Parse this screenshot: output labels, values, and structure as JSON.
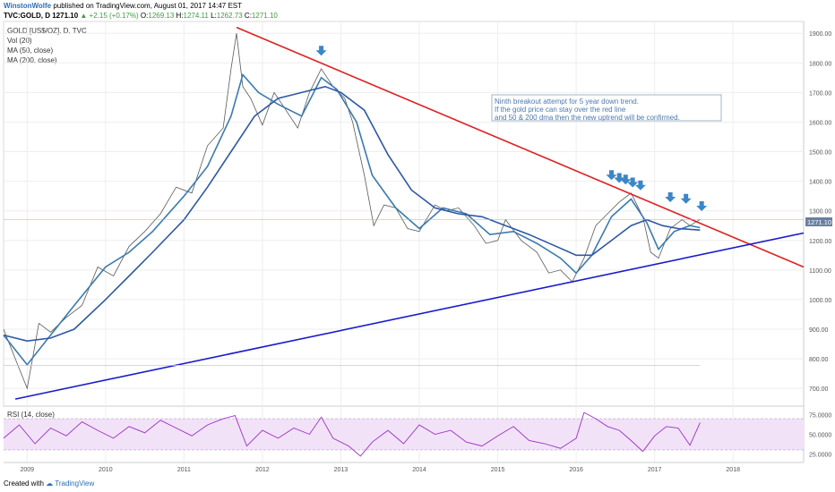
{
  "header": {
    "author": "WinstonWolfe",
    "published": "published on TradingView.com, August 01, 2017 14:47 EST",
    "symbol": "TVC:GOLD, D",
    "last": "1271.10",
    "change": "▲ +2.15 (+0.17%)",
    "o_label": "O:",
    "o": "1269.13",
    "h_label": "H:",
    "h": "1274.11",
    "l_label": "L:",
    "l": "1262.73",
    "c_label": "C:",
    "c": "1271.10"
  },
  "legend": [
    "GOLD [US$/OZ], D, TVC",
    "Vol (20)",
    "MA (50, close)",
    "MA (200, close)"
  ],
  "annotation": [
    "Ninth breakout attempt for 5 year down trend.",
    "If the gold price can stay over the red line",
    "and 50 & 200 dma then the new uptrend will be confirmed."
  ],
  "rsi_label": "RSI (14, close)",
  "price_badge": "1271.10",
  "footer": {
    "created": "Created with",
    "brand": "TradingView"
  },
  "colors": {
    "candle": "#5a5a5a",
    "ma50": "#3a7ab0",
    "ma200": "#2e58a6",
    "resistance": "#e02020",
    "support": "#1a1acc",
    "arrow": "#3a86c8",
    "rsi": "#9b30c8",
    "rsi_band": "#f2e2f8"
  },
  "chart_data": [
    {
      "type": "line",
      "title": "GOLD [US$/OZ], D, TVC",
      "x_tick_labels": [
        "2009",
        "2010",
        "2011",
        "2012",
        "2013",
        "2014",
        "2015",
        "2016",
        "2017",
        "2018"
      ],
      "y_tick_labels": [
        "700.00",
        "800.00",
        "900.00",
        "1000.00",
        "1100.00",
        "1200.00",
        "1300.00",
        "1400.00",
        "1500.00",
        "1600.00",
        "1700.00",
        "1800.00",
        "1900.00"
      ],
      "ylim": [
        640,
        1940
      ],
      "xlim": [
        2008.7,
        2018.9
      ],
      "series": [
        {
          "name": "GOLD",
          "x": [
            2008.7,
            2008.85,
            2009.0,
            2009.15,
            2009.3,
            2009.5,
            2009.7,
            2009.9,
            2010.1,
            2010.3,
            2010.5,
            2010.7,
            2010.9,
            2011.1,
            2011.3,
            2011.5,
            2011.6,
            2011.67,
            2011.75,
            2011.85,
            2012.0,
            2012.15,
            2012.3,
            2012.45,
            2012.6,
            2012.75,
            2012.9,
            2013.05,
            2013.15,
            2013.3,
            2013.42,
            2013.55,
            2013.7,
            2013.85,
            2014.0,
            2014.2,
            2014.35,
            2014.5,
            2014.7,
            2014.85,
            2015.0,
            2015.1,
            2015.3,
            2015.5,
            2015.65,
            2015.8,
            2015.95,
            2016.1,
            2016.25,
            2016.4,
            2016.55,
            2016.7,
            2016.85,
            2016.95,
            2017.05,
            2017.2,
            2017.35,
            2017.45,
            2017.58
          ],
          "y": [
            900,
            800,
            700,
            920,
            890,
            940,
            980,
            1110,
            1080,
            1180,
            1230,
            1290,
            1380,
            1360,
            1520,
            1580,
            1780,
            1900,
            1720,
            1680,
            1590,
            1700,
            1640,
            1580,
            1700,
            1780,
            1720,
            1680,
            1600,
            1420,
            1250,
            1320,
            1310,
            1240,
            1230,
            1320,
            1300,
            1310,
            1250,
            1190,
            1200,
            1270,
            1200,
            1160,
            1090,
            1100,
            1060,
            1140,
            1250,
            1290,
            1330,
            1360,
            1280,
            1160,
            1140,
            1240,
            1270,
            1250,
            1271
          ]
        },
        {
          "name": "MA (50, close)",
          "x": [
            2008.7,
            2009.0,
            2009.3,
            2009.6,
            2010.0,
            2010.3,
            2010.6,
            2011.0,
            2011.3,
            2011.6,
            2011.75,
            2011.95,
            2012.2,
            2012.5,
            2012.75,
            2012.95,
            2013.2,
            2013.4,
            2013.7,
            2014.0,
            2014.3,
            2014.6,
            2014.9,
            2015.2,
            2015.5,
            2015.8,
            2016.0,
            2016.2,
            2016.45,
            2016.7,
            2016.9,
            2017.05,
            2017.25,
            2017.45,
            2017.58
          ],
          "y": [
            880,
            780,
            880,
            980,
            1110,
            1160,
            1230,
            1350,
            1450,
            1620,
            1760,
            1700,
            1660,
            1620,
            1750,
            1710,
            1600,
            1420,
            1310,
            1240,
            1310,
            1290,
            1220,
            1230,
            1190,
            1140,
            1090,
            1150,
            1280,
            1340,
            1260,
            1170,
            1230,
            1250,
            1243
          ]
        },
        {
          "name": "MA (200, close)",
          "x": [
            2008.7,
            2009.0,
            2009.3,
            2009.6,
            2010.0,
            2010.3,
            2010.6,
            2011.0,
            2011.3,
            2011.6,
            2011.9,
            2012.2,
            2012.5,
            2012.8,
            2013.0,
            2013.3,
            2013.6,
            2013.9,
            2014.2,
            2014.5,
            2014.8,
            2015.1,
            2015.4,
            2015.7,
            2016.0,
            2016.2,
            2016.4,
            2016.7,
            2016.9,
            2017.1,
            2017.3,
            2017.58
          ],
          "y": [
            880,
            860,
            870,
            900,
            1000,
            1080,
            1160,
            1270,
            1380,
            1500,
            1620,
            1680,
            1700,
            1720,
            1700,
            1640,
            1490,
            1370,
            1310,
            1290,
            1280,
            1250,
            1220,
            1185,
            1150,
            1150,
            1190,
            1250,
            1270,
            1250,
            1240,
            1235
          ]
        },
        {
          "name": "Resistance (red line)",
          "x": [
            2011.67,
            2018.9
          ],
          "y": [
            1920,
            1110
          ]
        },
        {
          "name": "Support (blue line)",
          "x": [
            2008.85,
            2018.9
          ],
          "y": [
            664,
            1225
          ]
        },
        {
          "name": "Horizontal level",
          "x": [
            2008.7,
            2017.58
          ],
          "y": [
            778,
            778
          ]
        }
      ],
      "annotations": [
        {
          "kind": "arrow",
          "x": 2012.75,
          "y": 1800
        },
        {
          "kind": "arrow",
          "x": 2016.45,
          "y": 1380
        },
        {
          "kind": "arrow",
          "x": 2016.55,
          "y": 1370
        },
        {
          "kind": "arrow",
          "x": 2016.63,
          "y": 1365
        },
        {
          "kind": "arrow",
          "x": 2016.72,
          "y": 1355
        },
        {
          "kind": "arrow",
          "x": 2016.82,
          "y": 1345
        },
        {
          "kind": "arrow",
          "x": 2017.2,
          "y": 1305
        },
        {
          "kind": "arrow",
          "x": 2017.4,
          "y": 1300
        },
        {
          "kind": "arrow",
          "x": 2017.6,
          "y": 1275
        }
      ]
    },
    {
      "type": "line",
      "title": "RSI (14, close)",
      "y_tick_labels": [
        "75.0000",
        "50.0000",
        "25.0000"
      ],
      "ylim": [
        15,
        85
      ],
      "xlim": [
        2008.7,
        2018.9
      ],
      "bands": [
        30,
        70
      ],
      "series": [
        {
          "name": "RSI",
          "x": [
            2008.7,
            2008.9,
            2009.1,
            2009.3,
            2009.5,
            2009.7,
            2009.9,
            2010.1,
            2010.3,
            2010.5,
            2010.7,
            2010.9,
            2011.1,
            2011.3,
            2011.5,
            2011.65,
            2011.8,
            2012.0,
            2012.2,
            2012.4,
            2012.6,
            2012.75,
            2012.9,
            2013.1,
            2013.25,
            2013.4,
            2013.6,
            2013.8,
            2014.0,
            2014.2,
            2014.4,
            2014.6,
            2014.8,
            2015.0,
            2015.2,
            2015.4,
            2015.6,
            2015.8,
            2016.0,
            2016.1,
            2016.25,
            2016.4,
            2016.55,
            2016.7,
            2016.85,
            2017.0,
            2017.15,
            2017.3,
            2017.45,
            2017.58
          ],
          "y": [
            45,
            62,
            38,
            58,
            48,
            66,
            55,
            45,
            60,
            52,
            68,
            58,
            48,
            62,
            70,
            74,
            35,
            55,
            45,
            58,
            50,
            72,
            45,
            35,
            22,
            40,
            55,
            38,
            62,
            50,
            55,
            40,
            35,
            48,
            60,
            42,
            38,
            32,
            45,
            78,
            70,
            60,
            55,
            42,
            28,
            48,
            60,
            58,
            36,
            65
          ]
        }
      ]
    }
  ]
}
